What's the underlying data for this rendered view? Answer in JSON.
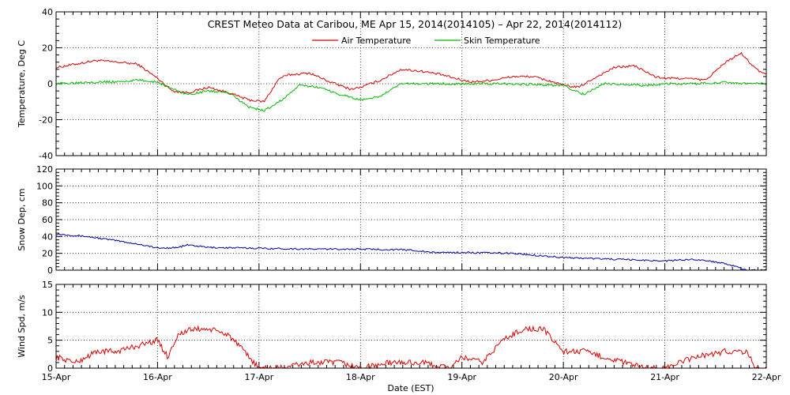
{
  "chart_data": {
    "type": "line",
    "title": "CREST Meteo Data at Caribou, ME   Apr 15, 2014(2014105) – Apr 22, 2014(2014112)",
    "xlabel": "Date (EST)",
    "x_range_days": [
      0,
      7
    ],
    "x_tick_labels": [
      "15-Apr",
      "16-Apr",
      "17-Apr",
      "18-Apr",
      "19-Apr",
      "20-Apr",
      "21-Apr",
      "22-Apr"
    ],
    "panels": [
      {
        "id": "temperature",
        "ylabel": "Temperature, Deg C",
        "ylim": [
          -40,
          40
        ],
        "y_ticks": [
          -40,
          -20,
          0,
          20,
          40
        ],
        "legend": "top-center",
        "series": [
          {
            "name": "Air Temperature",
            "color": "#dd0000",
            "x": [
              0,
              0.2,
              0.4,
              0.6,
              0.8,
              1.0,
              1.15,
              1.3,
              1.5,
              1.7,
              1.9,
              2.05,
              2.2,
              2.3,
              2.5,
              2.7,
              2.9,
              3.0,
              3.2,
              3.4,
              3.6,
              3.8,
              4.0,
              4.1,
              4.3,
              4.5,
              4.7,
              4.9,
              5.0,
              5.15,
              5.3,
              5.5,
              5.7,
              5.9,
              6.0,
              6.2,
              6.4,
              6.6,
              6.75,
              6.9,
              7.0
            ],
            "y": [
              9,
              11,
              13,
              12,
              11,
              3,
              -4,
              -5,
              -2,
              -5,
              -9,
              -10,
              3,
              5,
              6,
              1,
              -3,
              -2,
              2,
              8,
              7,
              5,
              2,
              1,
              2,
              4,
              4,
              1,
              -1,
              -2,
              3,
              9,
              10,
              4,
              3,
              3,
              2,
              12,
              17,
              8,
              5
            ]
          },
          {
            "name": "Skin Temperature",
            "color": "#00bb00",
            "x": [
              0,
              0.3,
              0.6,
              0.8,
              1.0,
              1.15,
              1.3,
              1.5,
              1.7,
              1.9,
              2.05,
              2.2,
              2.4,
              2.6,
              2.8,
              3.0,
              3.2,
              3.4,
              3.6,
              3.8,
              4.0,
              4.5,
              5.0,
              5.2,
              5.4,
              5.8,
              6.0,
              6.3,
              6.6,
              6.8,
              7.0
            ],
            "y": [
              0,
              1,
              1,
              2,
              1,
              -3,
              -6,
              -4,
              -5,
              -13,
              -15,
              -10,
              -1,
              -2,
              -6,
              -9,
              -7,
              0,
              0,
              0,
              0,
              0,
              -1,
              -6,
              0,
              -1,
              0,
              0,
              1,
              0,
              0
            ]
          }
        ]
      },
      {
        "id": "snow",
        "ylabel": "Snow Dep, cm",
        "ylim": [
          0,
          120
        ],
        "y_ticks": [
          0,
          20,
          40,
          60,
          80,
          100,
          120
        ],
        "series": [
          {
            "name": "",
            "color": "#0000aa",
            "x": [
              0,
              0.3,
              0.6,
              0.9,
              1.0,
              1.2,
              1.3,
              1.5,
              2.0,
              2.5,
              3.0,
              3.5,
              3.7,
              4.0,
              4.5,
              5.0,
              5.5,
              6.0,
              6.3,
              6.6,
              6.8,
              7.0
            ],
            "y": [
              43,
              40,
              35,
              29,
              26,
              27,
              30,
              27,
              26,
              25,
              25,
              24,
              21,
              21,
              20,
              15,
              13,
              11,
              13,
              8,
              0,
              0
            ]
          }
        ]
      },
      {
        "id": "wind",
        "ylabel": "Wind Spd, m/s",
        "ylim": [
          0,
          15
        ],
        "y_ticks": [
          0,
          5,
          10,
          15
        ],
        "series": [
          {
            "name": "",
            "color": "#dd0000",
            "x": [
              0,
              0.2,
              0.4,
              0.6,
              0.8,
              1.0,
              1.1,
              1.2,
              1.35,
              1.5,
              1.7,
              1.85,
              2.0,
              2.2,
              2.5,
              2.8,
              3.0,
              3.3,
              3.6,
              3.9,
              4.0,
              4.2,
              4.4,
              4.6,
              4.8,
              5.0,
              5.2,
              5.4,
              5.6,
              5.8,
              6.0,
              6.3,
              6.6,
              6.8,
              6.9,
              7.0
            ],
            "y": [
              2,
              1,
              3,
              3,
              4,
              5,
              2,
              6,
              7,
              7,
              6,
              3,
              0,
              0,
              1,
              1,
              0,
              1,
              1,
              0,
              2,
              1,
              5,
              7,
              7,
              3,
              3,
              2,
              1,
              0,
              0,
              2,
              3,
              3,
              0,
              0
            ]
          }
        ]
      }
    ]
  }
}
